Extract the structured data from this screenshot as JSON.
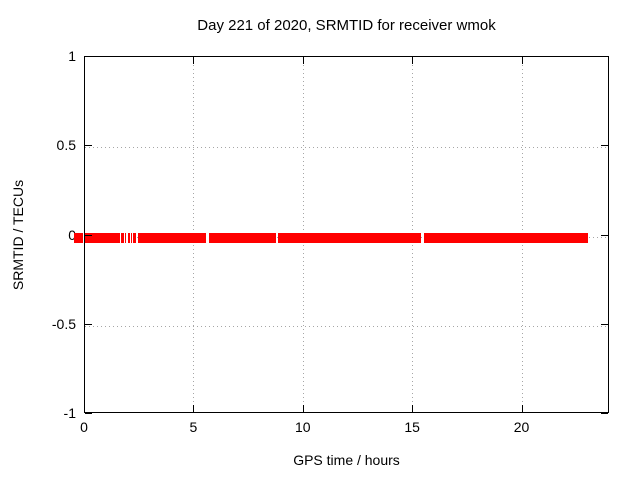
{
  "chart_data": {
    "type": "scatter",
    "title": "Day 221 of 2020, SRMTID for receiver wmok",
    "xlabel": "GPS time / hours",
    "ylabel": "SRMTID / TECUs",
    "xlim": [
      0,
      24
    ],
    "ylim": [
      -1,
      1
    ],
    "grid": true,
    "legend": "none",
    "xticks": [
      {
        "value": 0,
        "label": "0"
      },
      {
        "value": 5,
        "label": "5"
      },
      {
        "value": 10,
        "label": "10"
      },
      {
        "value": 15,
        "label": "15"
      },
      {
        "value": 20,
        "label": "20"
      }
    ],
    "yticks": [
      {
        "value": 1,
        "label": "1"
      },
      {
        "value": 0.5,
        "label": "0.5"
      },
      {
        "value": 0,
        "label": "0"
      },
      {
        "value": -0.5,
        "label": "-0.5"
      },
      {
        "value": -1,
        "label": "-1"
      }
    ],
    "series": [
      {
        "name": "SRMTID",
        "color": "#ff0000",
        "y_value": 0,
        "segments_hours": [
          [
            -0.45,
            -0.05
          ],
          [
            0.0,
            1.65
          ],
          [
            1.71,
            1.83
          ],
          [
            1.87,
            1.92
          ],
          [
            1.99,
            2.08
          ],
          [
            2.13,
            2.17
          ],
          [
            2.26,
            2.38
          ],
          [
            2.45,
            2.49
          ],
          [
            2.53,
            5.58
          ],
          [
            5.71,
            8.78
          ],
          [
            8.87,
            15.41
          ],
          [
            15.54,
            23.04
          ]
        ]
      }
    ]
  },
  "colors": {
    "data": "#ff0000",
    "grid": "#a6a6a6",
    "border": "#000000",
    "text": "#000000",
    "background": "#ffffff"
  }
}
